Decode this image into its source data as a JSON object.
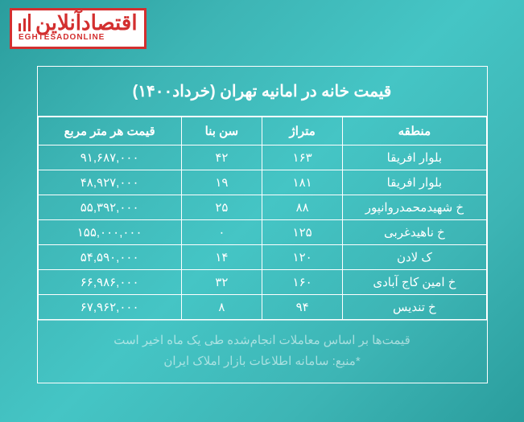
{
  "logo": {
    "main": "اقتصادآنلاین",
    "sub": "EGHTESADONLINE"
  },
  "title": "قیمت خانه در امانیه تهران (خرداد۱۴۰۰)",
  "columns": [
    "منطقه",
    "متراژ",
    "سن بنا",
    "قیمت هر متر مربع"
  ],
  "rows": [
    {
      "region": "بلوار افریقا",
      "area": "۱۶۳",
      "age": "۴۲",
      "price": "۹۱,۶۸۷,۰۰۰"
    },
    {
      "region": "بلوار افریقا",
      "area": "۱۸۱",
      "age": "۱۹",
      "price": "۴۸,۹۲۷,۰۰۰"
    },
    {
      "region": "خ شهیدمحمدروانپور",
      "area": "۸۸",
      "age": "۲۵",
      "price": "۵۵,۳۹۲,۰۰۰"
    },
    {
      "region": "خ ناهیدغربی",
      "area": "۱۲۵",
      "age": "۰",
      "price": "۱۵۵,۰۰۰,۰۰۰"
    },
    {
      "region": "ک لادن",
      "area": "۱۲۰",
      "age": "۱۴",
      "price": "۵۴,۵۹۰,۰۰۰"
    },
    {
      "region": "خ امین کاج آبادی",
      "area": "۱۶۰",
      "age": "۳۲",
      "price": "۶۶,۹۸۶,۰۰۰"
    },
    {
      "region": "خ تندیس",
      "area": "۹۴",
      "age": "۸",
      "price": "۶۷,۹۶۲,۰۰۰"
    }
  ],
  "footer_line1": "قیمت‌ها بر اساس معاملات انجام‌شده طی یک ماه اخیر است",
  "footer_line2": "*منبع: سامانه اطلاعات بازار املاک ایران",
  "colors": {
    "border": "#ffffff",
    "text": "#ffffff",
    "logo_red": "#d32f2f",
    "bg_gradient_from": "#2a9d9d",
    "bg_gradient_to": "#45c5c5"
  }
}
